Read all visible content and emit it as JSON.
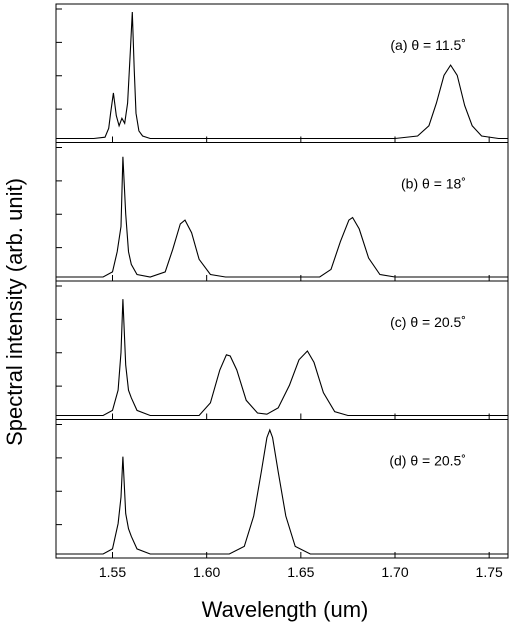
{
  "chart_data": {
    "type": "line",
    "xlabel": "Wavelength (um)",
    "ylabel": "Spectral intensity (arb. unit)",
    "xlim": [
      1.52,
      1.76
    ],
    "x_ticks": [
      "1.55",
      "1.60",
      "1.65",
      "1.70",
      "1.75"
    ],
    "x_tick_values": [
      1.55,
      1.6,
      1.65,
      1.7,
      1.75
    ],
    "panels": [
      {
        "label": "(a) θ = 11.5˚",
        "series": [
          {
            "points": [
              [
                1.52,
                0
              ],
              [
                1.54,
                0
              ],
              [
                1.546,
                0.01
              ],
              [
                1.548,
                0.08
              ],
              [
                1.549,
                0.2
              ],
              [
                1.5505,
                0.36
              ],
              [
                1.552,
                0.18
              ],
              [
                1.5535,
                0.1
              ],
              [
                1.555,
                0.16
              ],
              [
                1.5565,
                0.12
              ],
              [
                1.558,
                0.28
              ],
              [
                1.5595,
                0.7
              ],
              [
                1.5605,
                1.0
              ],
              [
                1.5615,
                0.55
              ],
              [
                1.5625,
                0.2
              ],
              [
                1.564,
                0.06
              ],
              [
                1.566,
                0.02
              ],
              [
                1.57,
                0
              ],
              [
                1.7,
                0
              ],
              [
                1.712,
                0.02
              ],
              [
                1.718,
                0.1
              ],
              [
                1.722,
                0.28
              ],
              [
                1.726,
                0.5
              ],
              [
                1.7295,
                0.58
              ],
              [
                1.733,
                0.5
              ],
              [
                1.737,
                0.26
              ],
              [
                1.741,
                0.1
              ],
              [
                1.746,
                0.02
              ],
              [
                1.755,
                0
              ],
              [
                1.76,
                0
              ]
            ]
          }
        ]
      },
      {
        "label": "(b) θ = 18˚",
        "series": [
          {
            "points": [
              [
                1.52,
                0
              ],
              [
                1.545,
                0
              ],
              [
                1.55,
                0.04
              ],
              [
                1.5525,
                0.2
              ],
              [
                1.5545,
                0.4
              ],
              [
                1.5555,
                0.95
              ],
              [
                1.557,
                0.5
              ],
              [
                1.5585,
                0.2
              ],
              [
                1.56,
                0.1
              ],
              [
                1.563,
                0.02
              ],
              [
                1.57,
                0
              ],
              [
                1.578,
                0.04
              ],
              [
                1.582,
                0.22
              ],
              [
                1.586,
                0.42
              ],
              [
                1.5885,
                0.45
              ],
              [
                1.592,
                0.35
              ],
              [
                1.596,
                0.14
              ],
              [
                1.602,
                0.02
              ],
              [
                1.61,
                0
              ],
              [
                1.66,
                0
              ],
              [
                1.666,
                0.06
              ],
              [
                1.671,
                0.28
              ],
              [
                1.6755,
                0.45
              ],
              [
                1.6775,
                0.47
              ],
              [
                1.681,
                0.38
              ],
              [
                1.686,
                0.15
              ],
              [
                1.692,
                0.02
              ],
              [
                1.7,
                0
              ],
              [
                1.76,
                0
              ]
            ]
          }
        ]
      },
      {
        "label": "(c) θ = 20.5˚",
        "series": [
          {
            "points": [
              [
                1.52,
                0
              ],
              [
                1.545,
                0
              ],
              [
                1.55,
                0.04
              ],
              [
                1.553,
                0.2
              ],
              [
                1.5545,
                0.5
              ],
              [
                1.5555,
                0.92
              ],
              [
                1.557,
                0.4
              ],
              [
                1.5585,
                0.2
              ],
              [
                1.56,
                0.14
              ],
              [
                1.563,
                0.04
              ],
              [
                1.57,
                0
              ],
              [
                1.596,
                0
              ],
              [
                1.602,
                0.1
              ],
              [
                1.607,
                0.36
              ],
              [
                1.6105,
                0.48
              ],
              [
                1.6125,
                0.47
              ],
              [
                1.616,
                0.36
              ],
              [
                1.621,
                0.12
              ],
              [
                1.627,
                0.02
              ],
              [
                1.632,
                0.01
              ],
              [
                1.638,
                0.06
              ],
              [
                1.644,
                0.24
              ],
              [
                1.649,
                0.44
              ],
              [
                1.6535,
                0.51
              ],
              [
                1.657,
                0.42
              ],
              [
                1.662,
                0.18
              ],
              [
                1.668,
                0.03
              ],
              [
                1.675,
                0
              ],
              [
                1.76,
                0
              ]
            ]
          }
        ]
      },
      {
        "label": "(d) θ = 20.5˚",
        "series": [
          {
            "points": [
              [
                1.52,
                0
              ],
              [
                1.545,
                0
              ],
              [
                1.55,
                0.04
              ],
              [
                1.553,
                0.24
              ],
              [
                1.5545,
                0.45
              ],
              [
                1.5555,
                0.77
              ],
              [
                1.557,
                0.32
              ],
              [
                1.5585,
                0.2
              ],
              [
                1.56,
                0.14
              ],
              [
                1.563,
                0.04
              ],
              [
                1.57,
                0
              ],
              [
                1.612,
                0
              ],
              [
                1.62,
                0.06
              ],
              [
                1.625,
                0.3
              ],
              [
                1.629,
                0.65
              ],
              [
                1.632,
                0.92
              ],
              [
                1.6335,
                0.98
              ],
              [
                1.635,
                0.92
              ],
              [
                1.638,
                0.65
              ],
              [
                1.642,
                0.3
              ],
              [
                1.647,
                0.06
              ],
              [
                1.655,
                0
              ],
              [
                1.76,
                0
              ]
            ]
          }
        ]
      }
    ]
  }
}
